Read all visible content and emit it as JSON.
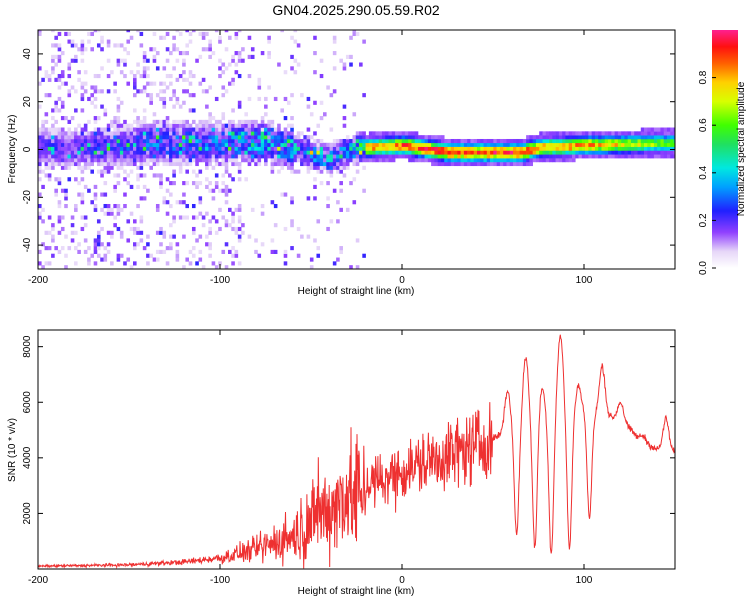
{
  "title": "GN04.2025.290.05.59.R02",
  "colors": {
    "snr_line": "#ee3030",
    "axis": "#000000",
    "background": "#ffffff"
  },
  "chart_data": [
    {
      "type": "heatmap",
      "name": "spectrogram",
      "xlabel": "Height of straight line (km)",
      "ylabel": "Frequency (Hz)",
      "xlim": [
        -200,
        150
      ],
      "ylim": [
        -50,
        50
      ],
      "x_ticks": [
        -200,
        -100,
        0,
        100
      ],
      "x_tick_labels": [
        "-200",
        "-100",
        "0",
        "100"
      ],
      "y_ticks": [
        -40,
        -20,
        0,
        20,
        40
      ],
      "y_tick_labels": [
        "-40",
        "-20",
        "0",
        "20",
        "40"
      ],
      "colorbar": {
        "label": "Normalized spectral amplitude",
        "range": [
          0,
          1
        ],
        "ticks": [
          0.0,
          0.2,
          0.4,
          0.6,
          0.8
        ],
        "tick_labels": [
          "0.0",
          "0.2",
          "0.4",
          "0.6",
          "0.8"
        ],
        "colormap": "rainbow (white-lavender-purple-blue-cyan-green-yellow-orange-red-magenta)"
      },
      "ridge": [
        {
          "x": -200,
          "freq": 0,
          "amp": 0.15
        },
        {
          "x": -160,
          "freq": 0,
          "amp": 0.2
        },
        {
          "x": -140,
          "freq": 2,
          "amp": 0.3
        },
        {
          "x": -100,
          "freq": 2,
          "amp": 0.35
        },
        {
          "x": -80,
          "freq": 2,
          "amp": 0.4
        },
        {
          "x": -60,
          "freq": 0,
          "amp": 0.45
        },
        {
          "x": -40,
          "freq": -5,
          "amp": 0.4
        },
        {
          "x": -25,
          "freq": 0,
          "amp": 0.5
        },
        {
          "x": -20,
          "freq": 0,
          "amp": 0.85
        },
        {
          "x": 0,
          "freq": 1,
          "amp": 0.9
        },
        {
          "x": 25,
          "freq": -2,
          "amp": 0.95
        },
        {
          "x": 65,
          "freq": -2,
          "amp": 0.95
        },
        {
          "x": 75,
          "freq": 0,
          "amp": 0.85
        },
        {
          "x": 100,
          "freq": 1,
          "amp": 0.85
        },
        {
          "x": 150,
          "freq": 2,
          "amp": 0.6
        }
      ]
    },
    {
      "type": "line",
      "name": "snr",
      "xlabel": "Height of straight line (km)",
      "ylabel": "SNR (10 * v/v)",
      "xlim": [
        -200,
        150
      ],
      "ylim": [
        0,
        8600
      ],
      "x_ticks": [
        -200,
        -100,
        0,
        100
      ],
      "x_tick_labels": [
        "-200",
        "-100",
        "0",
        "100"
      ],
      "y_ticks": [
        2000,
        4000,
        6000,
        8000
      ],
      "y_tick_labels": [
        "2000",
        "4000",
        "6000",
        "8000"
      ],
      "envelope": [
        {
          "x": -200,
          "y": 100
        },
        {
          "x": -150,
          "y": 150
        },
        {
          "x": -120,
          "y": 250
        },
        {
          "x": -100,
          "y": 400
        },
        {
          "x": -80,
          "y": 700
        },
        {
          "x": -60,
          "y": 1200
        },
        {
          "x": -40,
          "y": 2200
        },
        {
          "x": -20,
          "y": 3000
        },
        {
          "x": 0,
          "y": 3500
        },
        {
          "x": 20,
          "y": 4000
        },
        {
          "x": 40,
          "y": 4400
        },
        {
          "x": 50,
          "y": 4700
        },
        {
          "x": 60,
          "y": 5000
        },
        {
          "x": 80,
          "y": 5300
        },
        {
          "x": 100,
          "y": 5600
        },
        {
          "x": 120,
          "y": 5400
        },
        {
          "x": 130,
          "y": 4700
        },
        {
          "x": 140,
          "y": 4300
        },
        {
          "x": 150,
          "y": 4200
        }
      ],
      "peaks": [
        {
          "x": 58,
          "y": 6400
        },
        {
          "x": 68,
          "y": 7600
        },
        {
          "x": 77,
          "y": 6500
        },
        {
          "x": 87,
          "y": 8400
        },
        {
          "x": 97,
          "y": 6600
        },
        {
          "x": 110,
          "y": 7300
        },
        {
          "x": 120,
          "y": 6000
        },
        {
          "x": 132,
          "y": 4800
        },
        {
          "x": 145,
          "y": 5400
        }
      ],
      "troughs": [
        {
          "x": 63,
          "y": 1200
        },
        {
          "x": 73,
          "y": 700
        },
        {
          "x": 82,
          "y": 500
        },
        {
          "x": 92,
          "y": 700
        },
        {
          "x": 103,
          "y": 1800
        }
      ]
    }
  ]
}
